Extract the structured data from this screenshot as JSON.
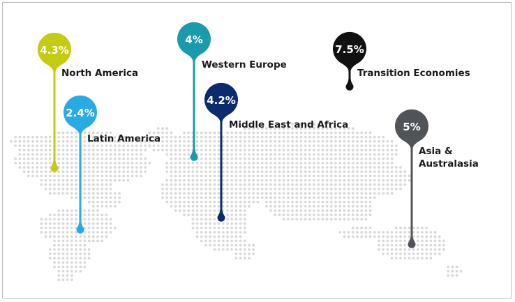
{
  "regions": [
    {
      "id": "north-america",
      "value": "4.3%",
      "label": "North America",
      "color": "#c4cc12"
    },
    {
      "id": "latin-america",
      "value": "2.4%",
      "label": "Latin America",
      "color": "#29aae2"
    },
    {
      "id": "western-europe",
      "value": "4%",
      "label": "Western Europe",
      "color": "#1a9bab"
    },
    {
      "id": "middle-east-africa",
      "value": "4.2%",
      "label": "Middle East and Africa",
      "color": "#0c2a6e"
    },
    {
      "id": "transition-economies",
      "value": "7.5%",
      "label": "Transition Economies",
      "color": "#111111"
    },
    {
      "id": "asia-australasia",
      "value": "5%",
      "label": "Asia & Australasia",
      "color": "#505357"
    }
  ],
  "colors": {
    "map_dots": "#d9d9d9",
    "frame_border": "#bdbdbd"
  }
}
